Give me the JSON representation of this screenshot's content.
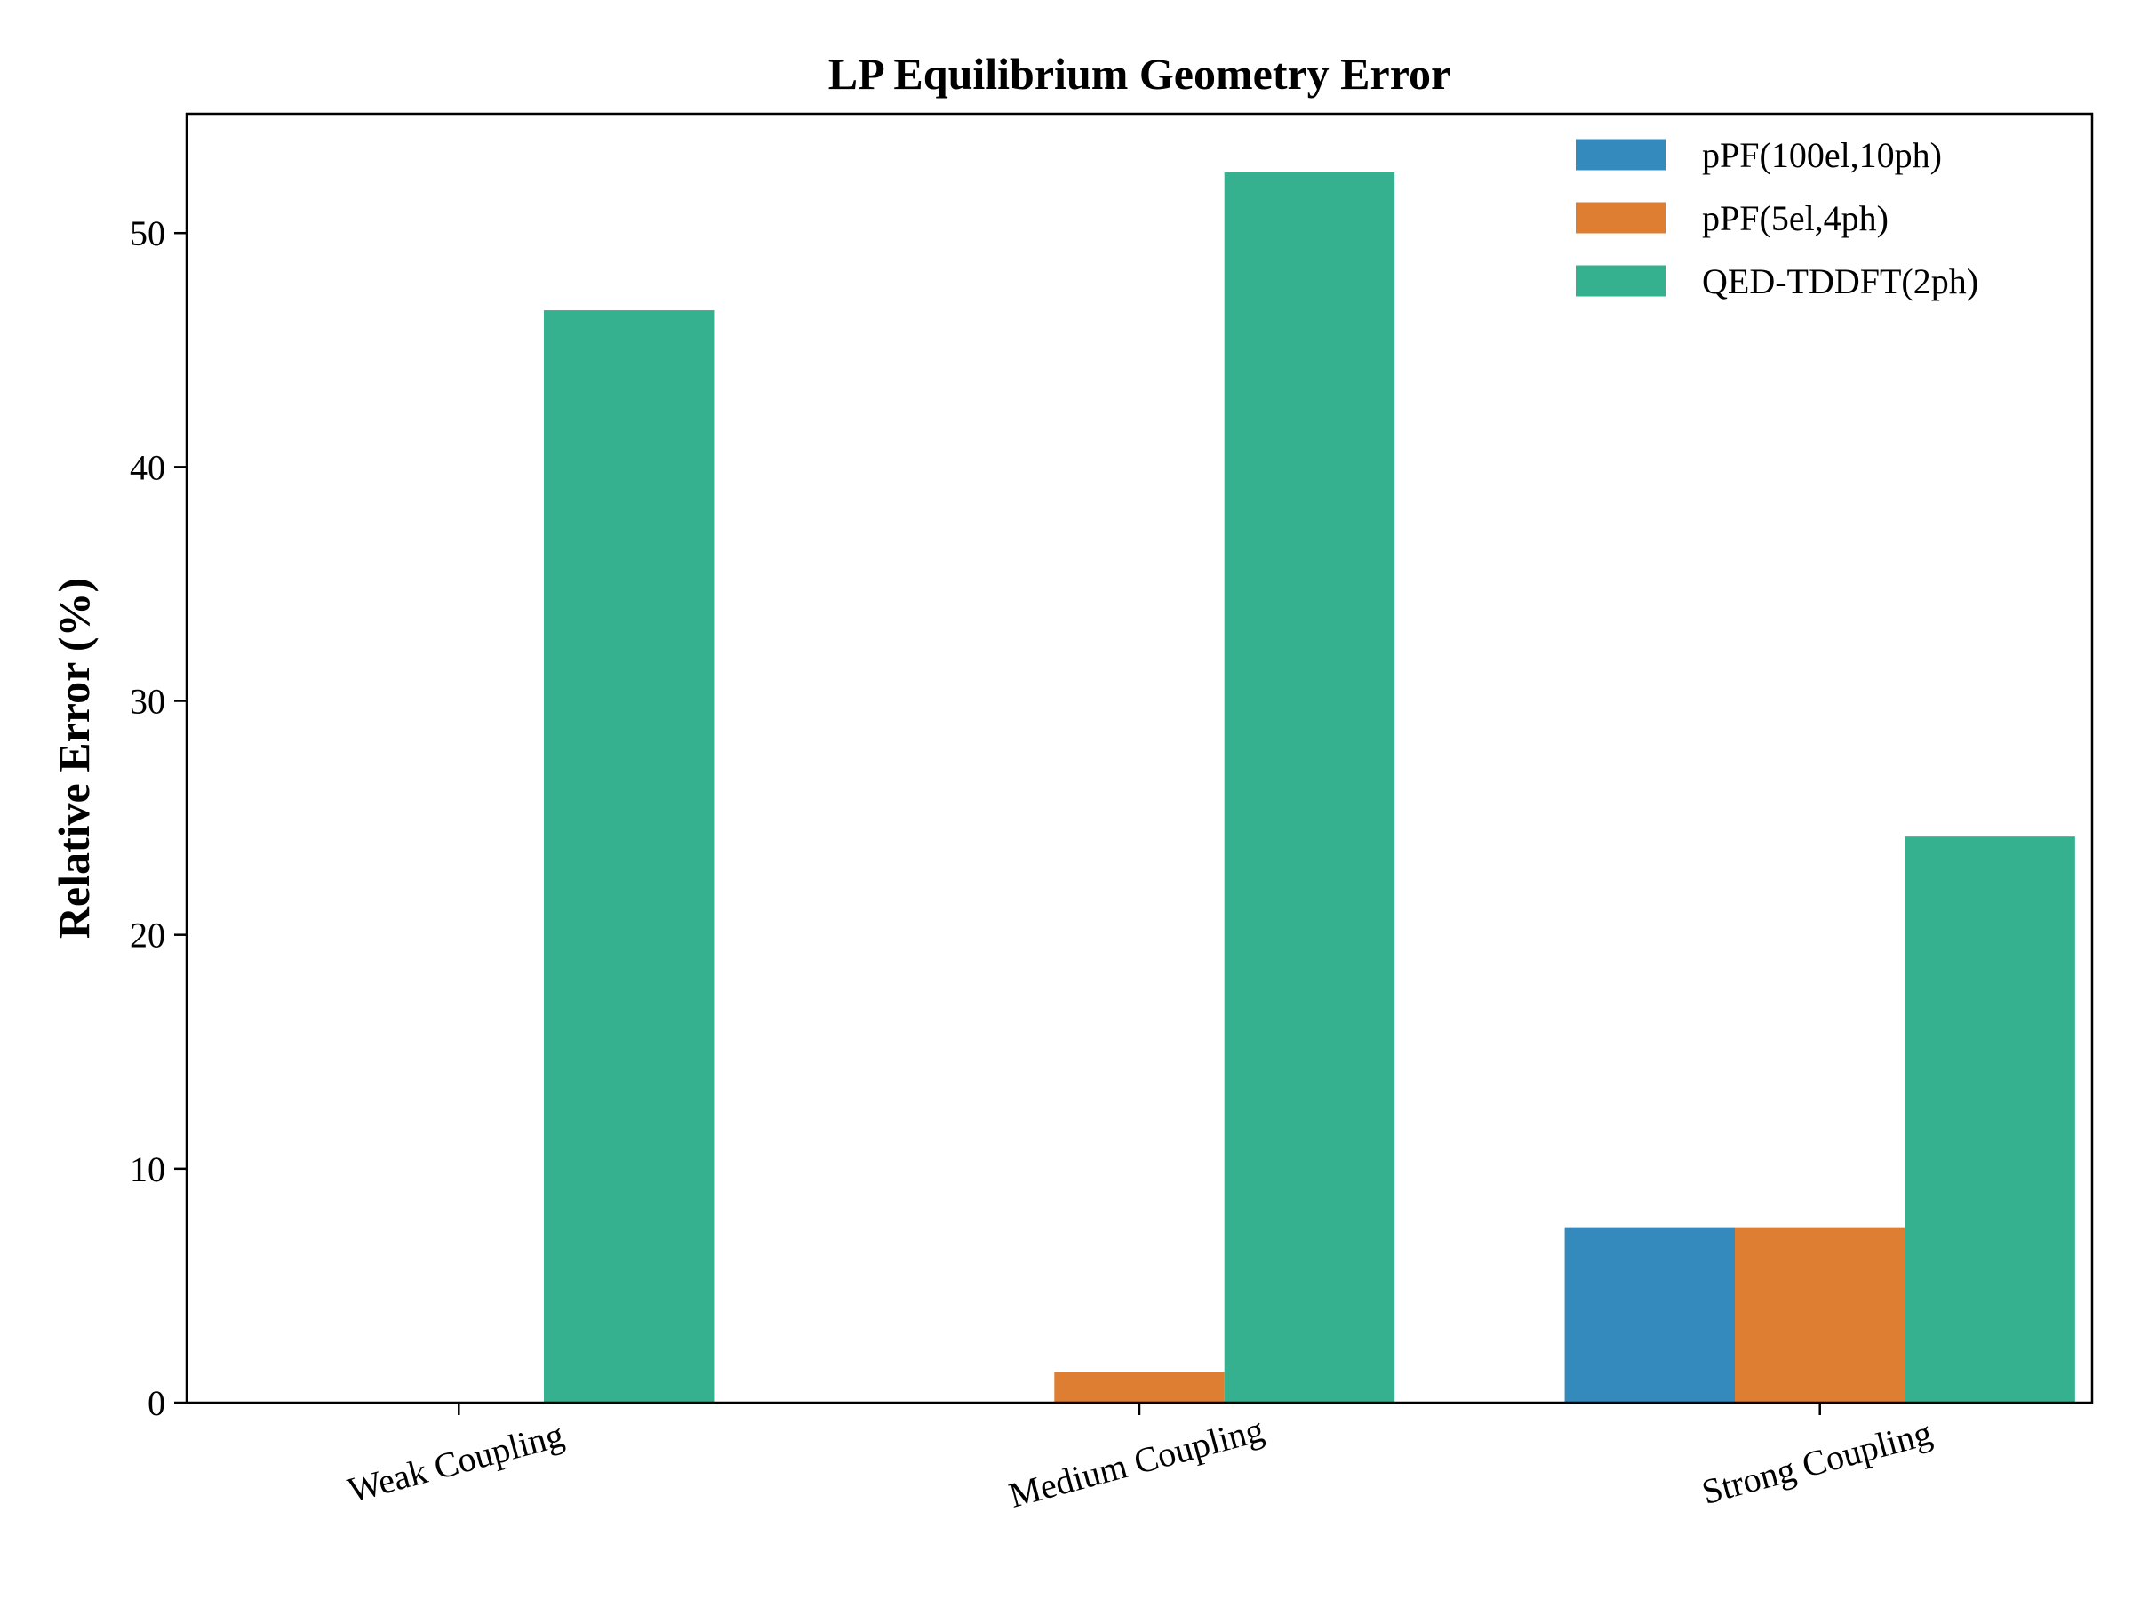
{
  "chart_data": {
    "type": "bar",
    "title": "LP Equilibrium Geometry Error",
    "xlabel": "",
    "ylabel": "Relative Error (%)",
    "categories": [
      "Weak Coupling",
      "Medium Coupling",
      "Strong Coupling"
    ],
    "series": [
      {
        "name": "pPF(100el,10ph)",
        "values": [
          0.0,
          0.0,
          7.5
        ],
        "color": "#348ABD"
      },
      {
        "name": "pPF(5el,4ph)",
        "values": [
          0.0,
          1.3,
          7.5
        ],
        "color": "#DE7E33"
      },
      {
        "name": "QED-TDDFT(2ph)",
        "values": [
          46.7,
          52.6,
          24.2
        ],
        "color": "#36B18F"
      }
    ],
    "ylim": [
      0,
      55.1
    ],
    "yticks": [
      0,
      10,
      20,
      30,
      40,
      50
    ],
    "xtick_rotation": "15deg",
    "grid": false,
    "legend": "top-right"
  }
}
